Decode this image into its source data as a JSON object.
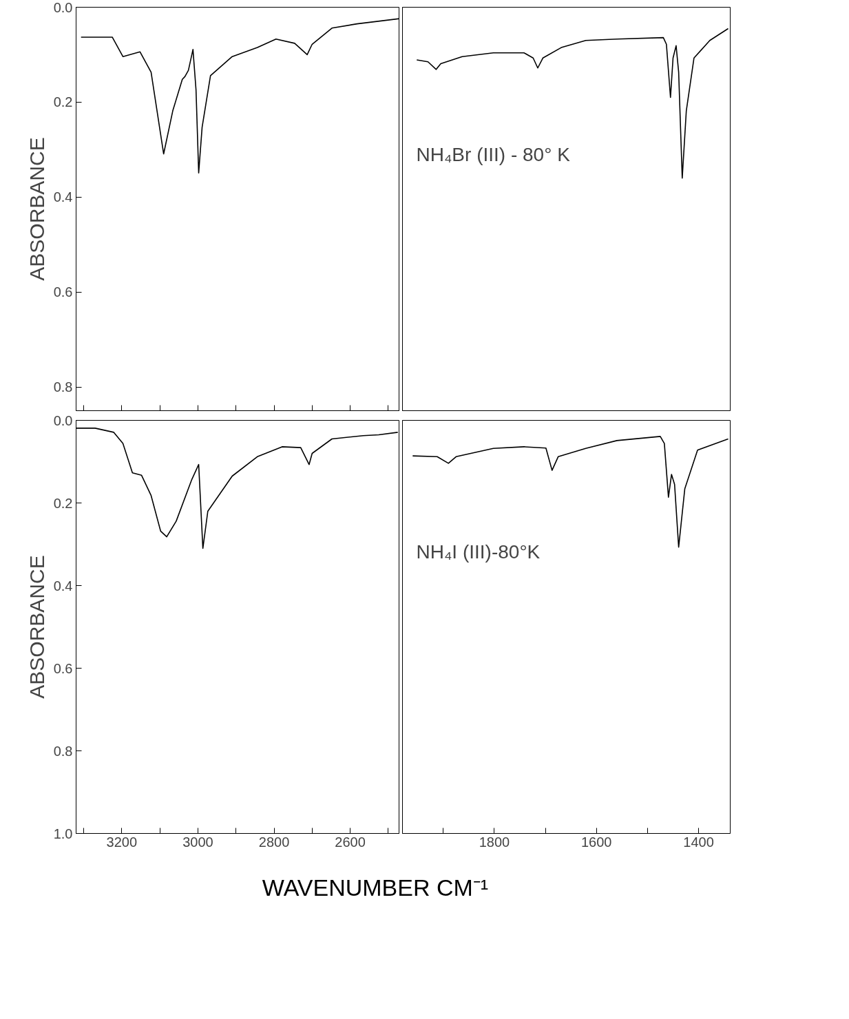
{
  "chart_data": [
    {
      "type": "line",
      "ylabel": "ABSORBANCE",
      "xlim": [
        3320,
        2470
      ],
      "ylim": [
        0.85,
        0.0
      ],
      "tick_labels": "y",
      "xticks": [
        {
          "value": 3300,
          "label": null
        },
        {
          "value": 3200,
          "label": null
        },
        {
          "value": 3100,
          "label": null
        },
        {
          "value": 3000,
          "label": null
        },
        {
          "value": 2900,
          "label": null
        },
        {
          "value": 2800,
          "label": null
        },
        {
          "value": 2700,
          "label": null
        },
        {
          "value": 2600,
          "label": null
        },
        {
          "value": 2500,
          "label": null
        }
      ],
      "yticks": [
        {
          "value": 0.0,
          "label": "0.0"
        },
        {
          "value": 0.2,
          "label": "0.2"
        },
        {
          "value": 0.4,
          "label": "0.4"
        },
        {
          "value": 0.6,
          "label": "0.6"
        },
        {
          "value": 0.8,
          "label": "0.8"
        }
      ],
      "series": [
        {
          "color": "#000000",
          "x": [
            3307,
            3225,
            3197,
            3152,
            3123,
            3090,
            3066,
            3041,
            3034,
            3025,
            3013,
            3005,
            2998,
            2989,
            2967,
            2910,
            2844,
            2795,
            2746,
            2713,
            2700,
            2648,
            2582,
            2470
          ],
          "values": [
            0.063,
            0.063,
            0.104,
            0.094,
            0.137,
            0.309,
            0.218,
            0.152,
            0.146,
            0.133,
            0.089,
            0.174,
            0.349,
            0.253,
            0.144,
            0.104,
            0.085,
            0.067,
            0.076,
            0.1,
            0.078,
            0.044,
            0.035,
            0.024
          ]
        }
      ]
    },
    {
      "type": "line",
      "xlim": [
        1980,
        1338
      ],
      "ylim": [
        0.85,
        0.0
      ],
      "tick_labels": false,
      "annotations": [
        "NH₄Br (III) - 80° K"
      ],
      "series": [
        {
          "color": "#000000",
          "x": [
            1952,
            1930,
            1914,
            1905,
            1863,
            1802,
            1742,
            1724,
            1715,
            1705,
            1669,
            1621,
            1560,
            1469,
            1463,
            1455,
            1450,
            1444,
            1439,
            1432,
            1424,
            1409,
            1378,
            1342
          ],
          "values": [
            0.111,
            0.115,
            0.131,
            0.119,
            0.104,
            0.096,
            0.096,
            0.107,
            0.128,
            0.107,
            0.085,
            0.07,
            0.067,
            0.064,
            0.078,
            0.19,
            0.107,
            0.081,
            0.137,
            0.36,
            0.218,
            0.107,
            0.07,
            0.045
          ]
        }
      ]
    },
    {
      "type": "line",
      "ylabel": "ABSORBANCE",
      "xlabel": "WAVENUMBER CM⁻¹",
      "xlim": [
        3320,
        2470
      ],
      "ylim": [
        1.0,
        0.0
      ],
      "xticks": [
        {
          "value": 3300,
          "label": null
        },
        {
          "value": 3200,
          "label": "3200"
        },
        {
          "value": 3100,
          "label": null
        },
        {
          "value": 3000,
          "label": "3000"
        },
        {
          "value": 2900,
          "label": null
        },
        {
          "value": 2800,
          "label": "2800"
        },
        {
          "value": 2700,
          "label": null
        },
        {
          "value": 2600,
          "label": "2600"
        },
        {
          "value": 2500,
          "label": null
        }
      ],
      "yticks": [
        {
          "value": 0.0,
          "label": "0.0"
        },
        {
          "value": 0.2,
          "label": "0.2"
        },
        {
          "value": 0.4,
          "label": "0.4"
        },
        {
          "value": 0.6,
          "label": "0.6"
        },
        {
          "value": 0.8,
          "label": "0.8"
        },
        {
          "value": 1.0,
          "label": "1.0"
        }
      ],
      "series": [
        {
          "color": "#000000",
          "x": [
            3320,
            3270,
            3221,
            3197,
            3172,
            3148,
            3123,
            3098,
            3082,
            3057,
            3016,
            2998,
            2987,
            2974,
            2910,
            2844,
            2779,
            2730,
            2708,
            2700,
            2648,
            2566,
            2525,
            2475
          ],
          "values": [
            0.019,
            0.019,
            0.029,
            0.056,
            0.127,
            0.133,
            0.182,
            0.268,
            0.282,
            0.244,
            0.143,
            0.107,
            0.31,
            0.22,
            0.135,
            0.088,
            0.064,
            0.066,
            0.107,
            0.08,
            0.045,
            0.037,
            0.035,
            0.029
          ]
        }
      ]
    },
    {
      "type": "line",
      "xlim": [
        1980,
        1338
      ],
      "ylim": [
        1.0,
        0.0
      ],
      "tick_labels": "x",
      "xticks": [
        {
          "value": 1900,
          "label": null
        },
        {
          "value": 1800,
          "label": "1800"
        },
        {
          "value": 1700,
          "label": null
        },
        {
          "value": 1600,
          "label": "1600"
        },
        {
          "value": 1500,
          "label": null
        },
        {
          "value": 1400,
          "label": "1400"
        }
      ],
      "annotations": [
        "NH₄I (III)-80°K"
      ],
      "series": [
        {
          "color": "#000000",
          "x": [
            1960,
            1912,
            1890,
            1875,
            1802,
            1742,
            1699,
            1687,
            1675,
            1621,
            1560,
            1475,
            1467,
            1459,
            1453,
            1447,
            1439,
            1427,
            1402,
            1342
          ],
          "values": [
            0.086,
            0.088,
            0.104,
            0.088,
            0.068,
            0.064,
            0.067,
            0.121,
            0.088,
            0.068,
            0.049,
            0.039,
            0.056,
            0.186,
            0.131,
            0.155,
            0.307,
            0.166,
            0.072,
            0.045
          ]
        }
      ]
    }
  ]
}
